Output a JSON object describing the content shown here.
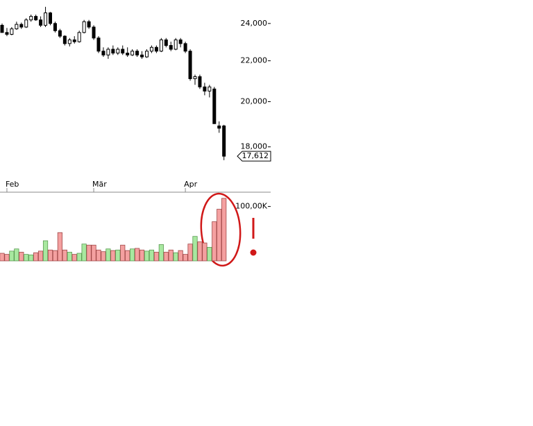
{
  "chart_data": [
    {
      "type": "candlestick",
      "categories": [
        null,
        "Feb",
        null,
        null,
        null,
        null,
        null,
        null,
        null,
        null,
        null,
        null,
        null,
        null,
        null,
        null,
        null,
        null,
        null,
        "Mär",
        null,
        null,
        null,
        null,
        null,
        null,
        null,
        null,
        null,
        null,
        null,
        null,
        null,
        null,
        null,
        null,
        null,
        null,
        "Apr",
        null,
        null,
        null,
        null,
        null,
        null,
        null,
        null
      ],
      "open": [
        23900,
        23500,
        23400,
        23700,
        23950,
        23800,
        24200,
        24400,
        24200,
        23900,
        24600,
        24000,
        23600,
        23300,
        22900,
        23100,
        23000,
        23500,
        24100,
        23800,
        23200,
        22500,
        22300,
        22600,
        22400,
        22600,
        22400,
        22300,
        22500,
        22300,
        22200,
        22500,
        22700,
        22500,
        23100,
        22800,
        22600,
        23100,
        22900,
        22500,
        21100,
        21200,
        20700,
        20500,
        20600,
        18900,
        18900
      ],
      "high": [
        24000,
        23750,
        23800,
        24100,
        24050,
        24300,
        24500,
        24500,
        24400,
        24950,
        24650,
        24100,
        23700,
        23350,
        23200,
        23300,
        23600,
        24200,
        24200,
        23900,
        23300,
        22700,
        22700,
        22800,
        22700,
        22800,
        22700,
        22600,
        22600,
        22500,
        22600,
        22800,
        22800,
        23200,
        23200,
        23000,
        23200,
        23200,
        23000,
        22600,
        21300,
        21300,
        20900,
        20800,
        20700,
        19100,
        18950
      ],
      "low": [
        23500,
        23300,
        23350,
        23650,
        23700,
        23750,
        24100,
        24150,
        23800,
        23800,
        23900,
        23500,
        23200,
        22800,
        22750,
        22900,
        22950,
        23450,
        23700,
        23100,
        22400,
        22200,
        22100,
        22300,
        22300,
        22300,
        22200,
        22250,
        22200,
        22100,
        22150,
        22400,
        22400,
        22450,
        22700,
        22500,
        22550,
        22700,
        22400,
        21000,
        20800,
        20600,
        20300,
        20200,
        19000,
        18600,
        17450
      ],
      "close": [
        23500,
        23400,
        23700,
        23950,
        23800,
        24200,
        24400,
        24200,
        23900,
        24600,
        24000,
        23600,
        23300,
        22900,
        23100,
        23000,
        23500,
        24100,
        23800,
        23200,
        22500,
        22300,
        22600,
        22400,
        22600,
        22400,
        22300,
        22500,
        22300,
        22200,
        22500,
        22700,
        22500,
        23100,
        22800,
        22600,
        23100,
        22900,
        22500,
        21100,
        21200,
        20700,
        20500,
        20700,
        19000,
        18800,
        17612
      ],
      "up_color": "#ffffff",
      "down_color": "#000000",
      "log_scale": true,
      "ylim": [
        16700,
        25350
      ],
      "yticks": [
        {
          "value": 18000,
          "label": "18,000"
        },
        {
          "value": 20000,
          "label": "20,000"
        },
        {
          "value": 22000,
          "label": "22,000"
        },
        {
          "value": 24000,
          "label": "24,000"
        }
      ],
      "last_price": {
        "value": 17612,
        "label": "17,612"
      }
    },
    {
      "type": "bar",
      "values": [
        14000,
        12000,
        18000,
        22000,
        16000,
        12000,
        11000,
        15000,
        18000,
        37000,
        20000,
        19000,
        52000,
        20000,
        16000,
        12000,
        14000,
        31000,
        29000,
        29000,
        20000,
        17000,
        22000,
        19000,
        20000,
        29000,
        19000,
        22000,
        23000,
        20000,
        18000,
        20000,
        16000,
        30000,
        16000,
        20000,
        15000,
        19000,
        12000,
        31000,
        45000,
        35000,
        33000,
        25000,
        72000,
        95000,
        115000
      ],
      "up_color": "#a8e8a0",
      "down_color": "#f4a0a0",
      "ylim": [
        0,
        125000
      ],
      "yticks": [
        {
          "value": 100000,
          "label": "100,00K"
        }
      ]
    }
  ]
}
